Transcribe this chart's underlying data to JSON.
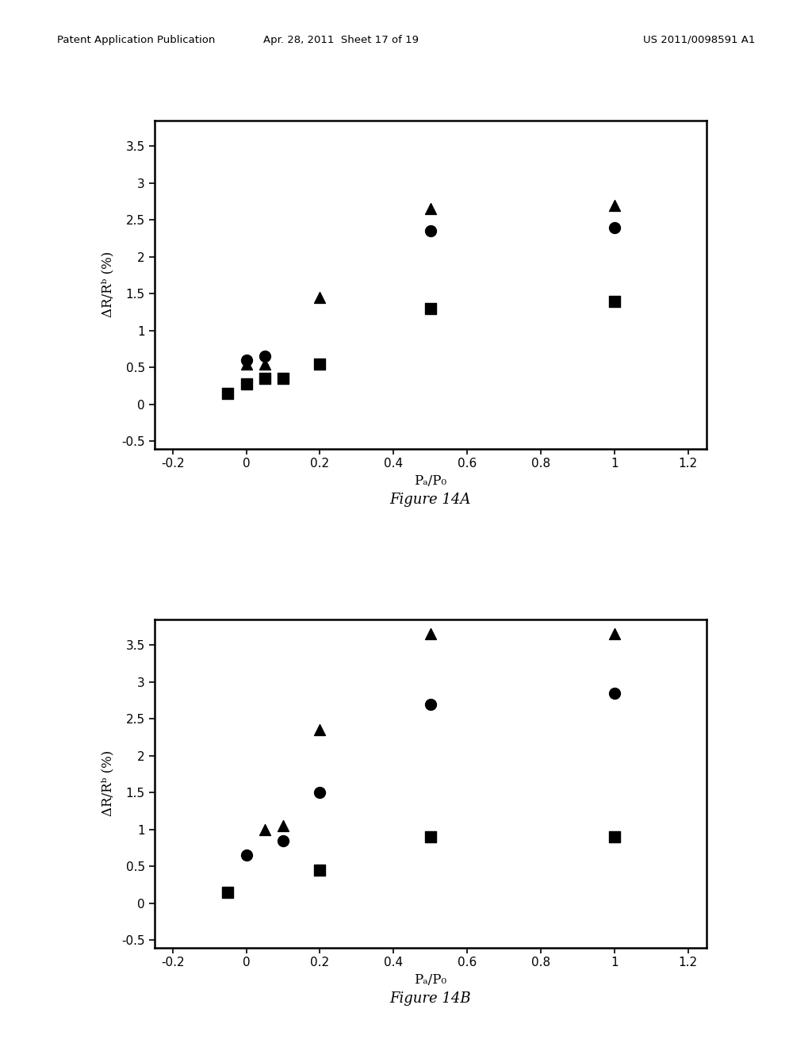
{
  "fig14A": {
    "triangles": {
      "x": [
        0.0,
        0.05,
        0.2,
        0.5,
        1.0
      ],
      "y": [
        0.55,
        0.55,
        1.45,
        2.65,
        2.7
      ]
    },
    "circles": {
      "x": [
        0.0,
        0.05,
        0.5,
        1.0
      ],
      "y": [
        0.6,
        0.65,
        2.35,
        2.4
      ]
    },
    "squares": {
      "x": [
        -0.05,
        0.0,
        0.05,
        0.1,
        0.2,
        0.5,
        1.0
      ],
      "y": [
        0.15,
        0.28,
        0.35,
        0.35,
        0.55,
        1.3,
        1.4
      ]
    }
  },
  "fig14B": {
    "triangles": {
      "x": [
        0.05,
        0.1,
        0.2,
        0.5,
        1.0
      ],
      "y": [
        1.0,
        1.05,
        2.35,
        3.65,
        3.65
      ]
    },
    "circles": {
      "x": [
        0.0,
        0.1,
        0.2,
        0.5,
        1.0
      ],
      "y": [
        0.65,
        0.85,
        1.5,
        2.7,
        2.85
      ]
    },
    "squares": {
      "x": [
        -0.05,
        0.2,
        0.5,
        1.0
      ],
      "y": [
        0.15,
        0.45,
        0.9,
        0.9
      ]
    }
  },
  "xlim": [
    -0.25,
    1.25
  ],
  "ylim": [
    -0.6,
    3.85
  ],
  "xticks": [
    -0.2,
    0.0,
    0.2,
    0.4,
    0.6,
    0.8,
    1.0,
    1.2
  ],
  "yticks": [
    -0.5,
    0.0,
    0.5,
    1.0,
    1.5,
    2.0,
    2.5,
    3.0,
    3.5
  ],
  "xlabel": "Pₐ/P₀",
  "ylabel": "ΔR/Rᵇ (%)",
  "caption_A": "Figure 14A",
  "caption_B": "Figure 14B",
  "header_left": "Patent Application Publication",
  "header_mid": "Apr. 28, 2011  Sheet 17 of 19",
  "header_right": "US 2011/0098591 A1",
  "marker_size": 100,
  "color": "black"
}
